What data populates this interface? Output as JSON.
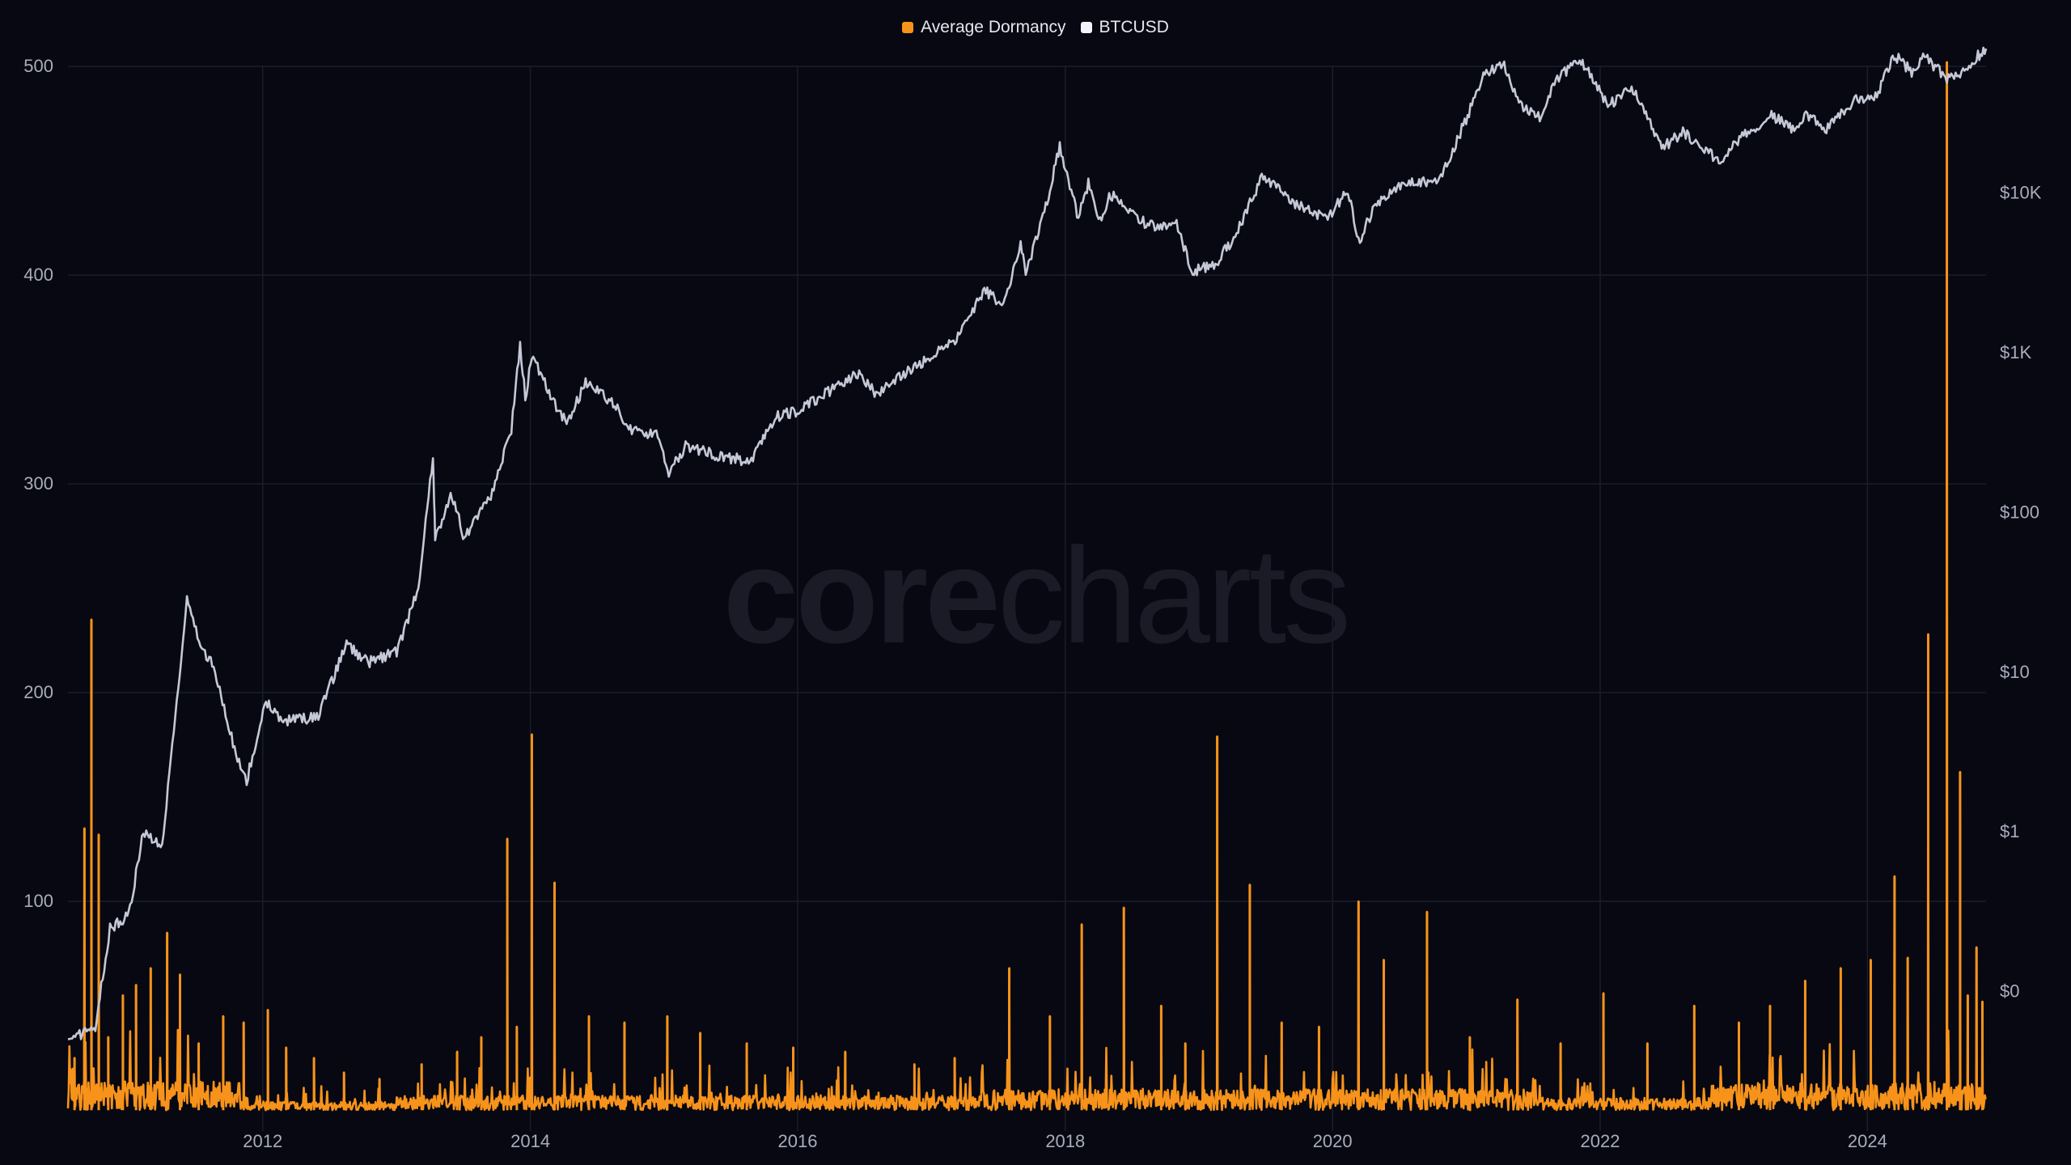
{
  "legend": {
    "dormancy_label": "Average Dormancy",
    "btc_label": "BTCUSD"
  },
  "watermark": {
    "bold": "core",
    "light": "charts"
  },
  "colors": {
    "background": "#070812",
    "dormancy": "#f7931a",
    "btc": "#c5c8d6",
    "grid": "#1b1d2b",
    "axis_text": "#a9acbb"
  },
  "chart_data": {
    "type": "line",
    "x_axis": {
      "type": "date",
      "range": [
        "2010-07-18",
        "2024-11-20"
      ],
      "ticks": [
        "2012",
        "2014",
        "2016",
        "2018",
        "2020",
        "2022",
        "2024"
      ]
    },
    "y_left": {
      "label": "",
      "range": [
        -10,
        500
      ],
      "ticks": [
        "100",
        "200",
        "300",
        "400",
        "500"
      ]
    },
    "y_right": {
      "label": "",
      "scale": "log",
      "range": [
        0.0134,
        62000
      ],
      "ticks": [
        "$0",
        "$1",
        "$10",
        "$100",
        "$1K",
        "$10K"
      ],
      "tick_values": [
        0.1,
        1,
        10,
        100,
        1000,
        10000
      ]
    },
    "grid": true,
    "legend_position": "top-center",
    "series": [
      {
        "name": "Average Dormancy",
        "axis": "left",
        "color": "#f7931a",
        "baseline_range": [
          0,
          18
        ],
        "spikes": [
          {
            "x": "2010-08-05",
            "y": 25
          },
          {
            "x": "2010-09-01",
            "y": 135
          },
          {
            "x": "2010-09-20",
            "y": 235
          },
          {
            "x": "2010-10-10",
            "y": 132
          },
          {
            "x": "2010-11-05",
            "y": 35
          },
          {
            "x": "2010-12-15",
            "y": 55
          },
          {
            "x": "2011-01-20",
            "y": 60
          },
          {
            "x": "2011-03-01",
            "y": 68
          },
          {
            "x": "2011-04-15",
            "y": 85
          },
          {
            "x": "2011-05-20",
            "y": 65
          },
          {
            "x": "2011-07-10",
            "y": 32
          },
          {
            "x": "2011-09-15",
            "y": 45
          },
          {
            "x": "2011-11-10",
            "y": 42
          },
          {
            "x": "2012-01-15",
            "y": 48
          },
          {
            "x": "2012-03-05",
            "y": 30
          },
          {
            "x": "2012-05-20",
            "y": 25
          },
          {
            "x": "2012-08-10",
            "y": 18
          },
          {
            "x": "2012-11-15",
            "y": 15
          },
          {
            "x": "2013-03-10",
            "y": 22
          },
          {
            "x": "2013-06-15",
            "y": 28
          },
          {
            "x": "2013-08-20",
            "y": 35
          },
          {
            "x": "2013-10-30",
            "y": 130
          },
          {
            "x": "2013-11-25",
            "y": 40
          },
          {
            "x": "2014-01-05",
            "y": 180
          },
          {
            "x": "2014-03-08",
            "y": 109
          },
          {
            "x": "2014-06-10",
            "y": 45
          },
          {
            "x": "2014-09-15",
            "y": 42
          },
          {
            "x": "2015-01-10",
            "y": 45
          },
          {
            "x": "2015-04-10",
            "y": 37
          },
          {
            "x": "2015-08-15",
            "y": 32
          },
          {
            "x": "2015-12-20",
            "y": 30
          },
          {
            "x": "2016-05-10",
            "y": 28
          },
          {
            "x": "2016-11-15",
            "y": 22
          },
          {
            "x": "2017-03-05",
            "y": 25
          },
          {
            "x": "2017-08-01",
            "y": 68
          },
          {
            "x": "2017-11-20",
            "y": 45
          },
          {
            "x": "2018-02-15",
            "y": 89
          },
          {
            "x": "2018-06-10",
            "y": 97
          },
          {
            "x": "2018-09-20",
            "y": 50
          },
          {
            "x": "2018-11-25",
            "y": 32
          },
          {
            "x": "2019-02-20",
            "y": 179
          },
          {
            "x": "2019-05-20",
            "y": 108
          },
          {
            "x": "2019-08-15",
            "y": 42
          },
          {
            "x": "2019-11-25",
            "y": 40
          },
          {
            "x": "2020-03-12",
            "y": 100
          },
          {
            "x": "2020-05-20",
            "y": 72
          },
          {
            "x": "2020-09-15",
            "y": 95
          },
          {
            "x": "2021-01-10",
            "y": 35
          },
          {
            "x": "2021-05-20",
            "y": 53
          },
          {
            "x": "2021-09-15",
            "y": 32
          },
          {
            "x": "2022-01-10",
            "y": 56
          },
          {
            "x": "2022-05-10",
            "y": 32
          },
          {
            "x": "2022-09-15",
            "y": 50
          },
          {
            "x": "2023-01-15",
            "y": 42
          },
          {
            "x": "2023-04-10",
            "y": 50
          },
          {
            "x": "2023-07-15",
            "y": 62
          },
          {
            "x": "2023-10-20",
            "y": 68
          },
          {
            "x": "2024-01-10",
            "y": 72
          },
          {
            "x": "2024-03-15",
            "y": 112
          },
          {
            "x": "2024-04-20",
            "y": 73
          },
          {
            "x": "2024-06-15",
            "y": 228
          },
          {
            "x": "2024-08-05",
            "y": 502
          },
          {
            "x": "2024-09-10",
            "y": 162
          },
          {
            "x": "2024-10-01",
            "y": 55
          },
          {
            "x": "2024-10-25",
            "y": 78
          },
          {
            "x": "2024-11-10",
            "y": 52
          }
        ]
      },
      {
        "name": "BTCUSD",
        "axis": "right",
        "color": "#c5c8d6",
        "points": [
          {
            "x": "2010-07-18",
            "y": 0.05
          },
          {
            "x": "2010-10-01",
            "y": 0.06
          },
          {
            "x": "2010-11-10",
            "y": 0.25
          },
          {
            "x": "2010-12-31",
            "y": 0.3
          },
          {
            "x": "2011-02-09",
            "y": 1.0
          },
          {
            "x": "2011-04-01",
            "y": 0.8
          },
          {
            "x": "2011-05-15",
            "y": 8
          },
          {
            "x": "2011-06-08",
            "y": 29
          },
          {
            "x": "2011-07-15",
            "y": 14
          },
          {
            "x": "2011-08-20",
            "y": 11
          },
          {
            "x": "2011-10-20",
            "y": 3
          },
          {
            "x": "2011-11-18",
            "y": 2.1
          },
          {
            "x": "2012-01-10",
            "y": 6.5
          },
          {
            "x": "2012-03-01",
            "y": 4.9
          },
          {
            "x": "2012-06-01",
            "y": 5.3
          },
          {
            "x": "2012-08-17",
            "y": 15
          },
          {
            "x": "2012-10-15",
            "y": 11.5
          },
          {
            "x": "2013-01-01",
            "y": 13.3
          },
          {
            "x": "2013-03-01",
            "y": 34
          },
          {
            "x": "2013-04-10",
            "y": 230
          },
          {
            "x": "2013-04-16",
            "y": 68
          },
          {
            "x": "2013-06-01",
            "y": 129
          },
          {
            "x": "2013-07-05",
            "y": 68
          },
          {
            "x": "2013-09-15",
            "y": 125
          },
          {
            "x": "2013-11-10",
            "y": 330
          },
          {
            "x": "2013-12-04",
            "y": 1150
          },
          {
            "x": "2013-12-18",
            "y": 520
          },
          {
            "x": "2014-01-05",
            "y": 950
          },
          {
            "x": "2014-02-25",
            "y": 540
          },
          {
            "x": "2014-04-10",
            "y": 360
          },
          {
            "x": "2014-06-01",
            "y": 640
          },
          {
            "x": "2014-08-15",
            "y": 490
          },
          {
            "x": "2014-10-05",
            "y": 320
          },
          {
            "x": "2014-12-15",
            "y": 310
          },
          {
            "x": "2015-01-14",
            "y": 178
          },
          {
            "x": "2015-03-01",
            "y": 260
          },
          {
            "x": "2015-06-01",
            "y": 225
          },
          {
            "x": "2015-08-24",
            "y": 210
          },
          {
            "x": "2015-11-04",
            "y": 400
          },
          {
            "x": "2015-12-31",
            "y": 430
          },
          {
            "x": "2016-06-17",
            "y": 750
          },
          {
            "x": "2016-08-02",
            "y": 550
          },
          {
            "x": "2016-12-31",
            "y": 960
          },
          {
            "x": "2017-03-10",
            "y": 1200
          },
          {
            "x": "2017-05-25",
            "y": 2500
          },
          {
            "x": "2017-07-16",
            "y": 1900
          },
          {
            "x": "2017-09-01",
            "y": 4900
          },
          {
            "x": "2017-09-15",
            "y": 3200
          },
          {
            "x": "2017-11-05",
            "y": 7400
          },
          {
            "x": "2017-12-17",
            "y": 19500
          },
          {
            "x": "2018-02-06",
            "y": 6900
          },
          {
            "x": "2018-03-05",
            "y": 11500
          },
          {
            "x": "2018-04-06",
            "y": 6600
          },
          {
            "x": "2018-05-05",
            "y": 9800
          },
          {
            "x": "2018-08-14",
            "y": 6200
          },
          {
            "x": "2018-11-01",
            "y": 6400
          },
          {
            "x": "2018-12-15",
            "y": 3200
          },
          {
            "x": "2019-02-15",
            "y": 3600
          },
          {
            "x": "2019-04-02",
            "y": 5000
          },
          {
            "x": "2019-06-26",
            "y": 12900
          },
          {
            "x": "2019-09-25",
            "y": 8500
          },
          {
            "x": "2019-12-15",
            "y": 6900
          },
          {
            "x": "2020-02-12",
            "y": 10300
          },
          {
            "x": "2020-03-12",
            "y": 4900
          },
          {
            "x": "2020-05-01",
            "y": 8800
          },
          {
            "x": "2020-08-01",
            "y": 11800
          },
          {
            "x": "2020-10-15",
            "y": 11500
          },
          {
            "x": "2020-12-31",
            "y": 29000
          },
          {
            "x": "2021-02-20",
            "y": 56000
          },
          {
            "x": "2021-04-14",
            "y": 63500
          },
          {
            "x": "2021-05-20",
            "y": 37000
          },
          {
            "x": "2021-07-20",
            "y": 29800
          },
          {
            "x": "2021-09-06",
            "y": 52000
          },
          {
            "x": "2021-11-10",
            "y": 67500
          },
          {
            "x": "2022-01-22",
            "y": 35000
          },
          {
            "x": "2022-03-28",
            "y": 47000
          },
          {
            "x": "2022-06-18",
            "y": 19000
          },
          {
            "x": "2022-08-15",
            "y": 24000
          },
          {
            "x": "2022-11-21",
            "y": 15800
          },
          {
            "x": "2023-01-20",
            "y": 22500
          },
          {
            "x": "2023-04-14",
            "y": 30400
          },
          {
            "x": "2023-06-15",
            "y": 25000
          },
          {
            "x": "2023-07-13",
            "y": 31000
          },
          {
            "x": "2023-09-11",
            "y": 25200
          },
          {
            "x": "2023-12-01",
            "y": 38500
          },
          {
            "x": "2024-01-23",
            "y": 39500
          },
          {
            "x": "2024-03-14",
            "y": 73000
          },
          {
            "x": "2024-05-01",
            "y": 57000
          },
          {
            "x": "2024-06-05",
            "y": 71000
          },
          {
            "x": "2024-08-05",
            "y": 53000
          },
          {
            "x": "2024-09-06",
            "y": 53500
          },
          {
            "x": "2024-10-29",
            "y": 72000
          },
          {
            "x": "2024-11-20",
            "y": 80000
          }
        ]
      }
    ]
  }
}
